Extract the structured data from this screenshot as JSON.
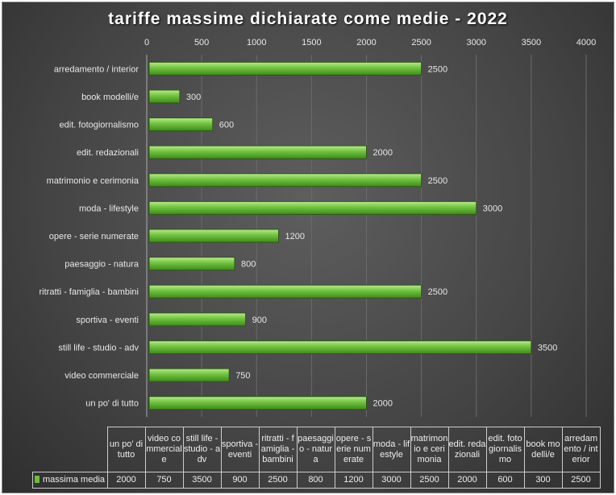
{
  "chart_data": {
    "type": "bar",
    "orientation": "horizontal",
    "title": "tariffe massime dichiarate come medie - 2022",
    "categories": [
      "arredamento / interior",
      "book modelli/e",
      "edit. fotogiornalismo",
      "edit. redazionali",
      "matrimonio e cerimonia",
      "moda - lifestyle",
      "opere - serie numerate",
      "paesaggio - natura",
      "ritratti - famiglia - bambini",
      "sportiva - eventi",
      "still life - studio - adv",
      "video commerciale",
      "un po' di tutto"
    ],
    "series": [
      {
        "name": "massima media",
        "values": [
          2500,
          300,
          600,
          2000,
          2500,
          3000,
          1200,
          800,
          2500,
          900,
          3500,
          750,
          2000
        ],
        "color": "#6bbf3b"
      }
    ],
    "xlim": [
      0,
      4000
    ],
    "xticks": [
      "0",
      "500",
      "1000",
      "1500",
      "2000",
      "2500",
      "3000",
      "3500",
      "4000"
    ],
    "grid": true,
    "data_table": {
      "headers": [
        "un po' di tutto",
        "video commerciale",
        "still life - studio - adv",
        "sportiva - eventi",
        "ritratti - famiglia - bambini",
        "paesaggio - natura",
        "opere - serie numerate",
        "moda - lifestyle",
        "matrimonio e cerimonia",
        "edit. redazionali",
        "edit. fotogiornalismo",
        "book modelli/e",
        "arredamento / interior"
      ],
      "row_label": "massima media",
      "values": [
        "2000",
        "750",
        "3500",
        "900",
        "2500",
        "800",
        "1200",
        "3000",
        "2500",
        "2000",
        "600",
        "300",
        "2500"
      ]
    }
  }
}
